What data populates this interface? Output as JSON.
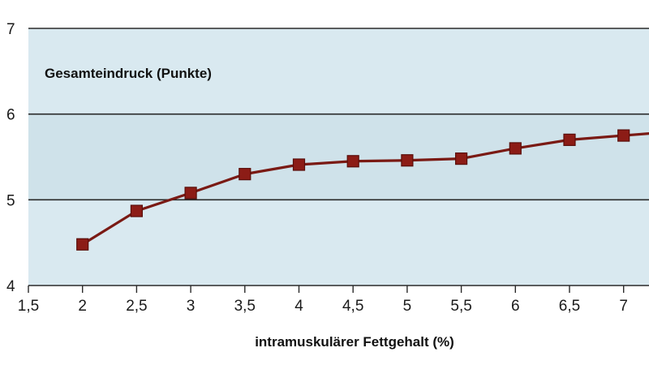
{
  "chart_data": {
    "type": "line",
    "title": "",
    "ylabel": "Gesamteindruck (Punkte)",
    "xlabel": "intramuskulärer Fettgehalt (%)",
    "xlim": [
      1.5,
      7.5
    ],
    "ylim": [
      4,
      7
    ],
    "x_ticks": [
      1.5,
      2,
      2.5,
      3,
      3.5,
      4,
      4.5,
      5,
      5.5,
      6,
      6.5,
      7
    ],
    "x_tick_labels": [
      "1,5",
      "2",
      "2,5",
      "3",
      "3,5",
      "4",
      "4,5",
      "5",
      "5,5",
      "6",
      "6,5",
      "7"
    ],
    "y_ticks": [
      4,
      5,
      6,
      7
    ],
    "y_tick_labels": [
      "4",
      "5",
      "6",
      "7"
    ],
    "grid": true,
    "legend": "none",
    "x": [
      2,
      2.5,
      3,
      3.5,
      4,
      4.5,
      5,
      5.5,
      6,
      6.5,
      7,
      7.5
    ],
    "values": [
      4.48,
      4.87,
      5.08,
      5.3,
      5.41,
      5.45,
      5.46,
      5.48,
      5.6,
      5.7,
      5.75,
      5.8
    ],
    "colors": {
      "line": "#7a1a14",
      "marker": "#8c1c16",
      "band": "#d9e9f0"
    }
  }
}
